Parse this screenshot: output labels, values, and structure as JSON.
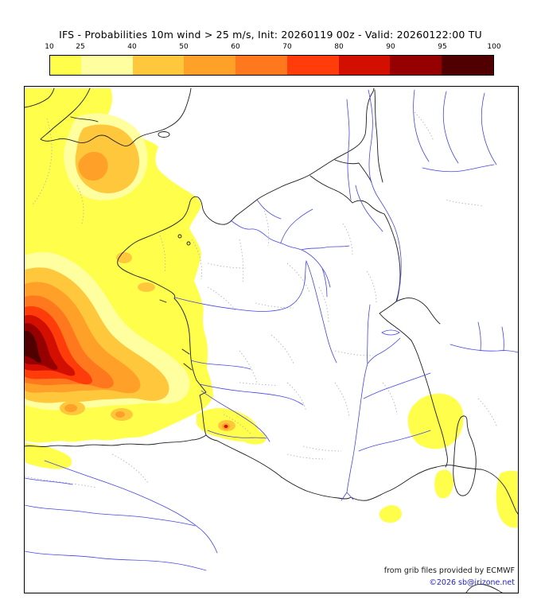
{
  "title": "IFS - Probabilities 10m wind > 25 m/s, Init: 20260119 00z - Valid: 20260122:00 TU",
  "colorbar": {
    "tick_labels": [
      "10",
      "25",
      "40",
      "50",
      "60",
      "70",
      "80",
      "90",
      "95",
      "100"
    ],
    "boundaries_pct": [
      0,
      6.98,
      18.61,
      30.23,
      41.86,
      53.49,
      65.12,
      76.74,
      88.37,
      100
    ],
    "segment_colors": [
      "#ffff4b",
      "#ffffa0",
      "#ffc83c",
      "#ffa028",
      "#ff781e",
      "#ff3c0a",
      "#d20f00",
      "#960000",
      "#500000"
    ]
  },
  "map": {
    "field": "Probability (%) of 10m wind > 25 m/s",
    "region": "France, Bay of Biscay and surroundings",
    "maximum_area": "Atlantic / Bay of Biscay west of France",
    "maximum_band_pct": "95-100",
    "secondary_areas": [
      "Western English Channel",
      "Brittany and Atlantic coast",
      "Cantabrian coast of Spain",
      "Pyrenees",
      "Sea around Corsica",
      "Ligurian Sea edge"
    ],
    "attribution_line1": "from grib files provided by ECMWF",
    "attribution_line2": "©2026 sb@irizone.net"
  }
}
